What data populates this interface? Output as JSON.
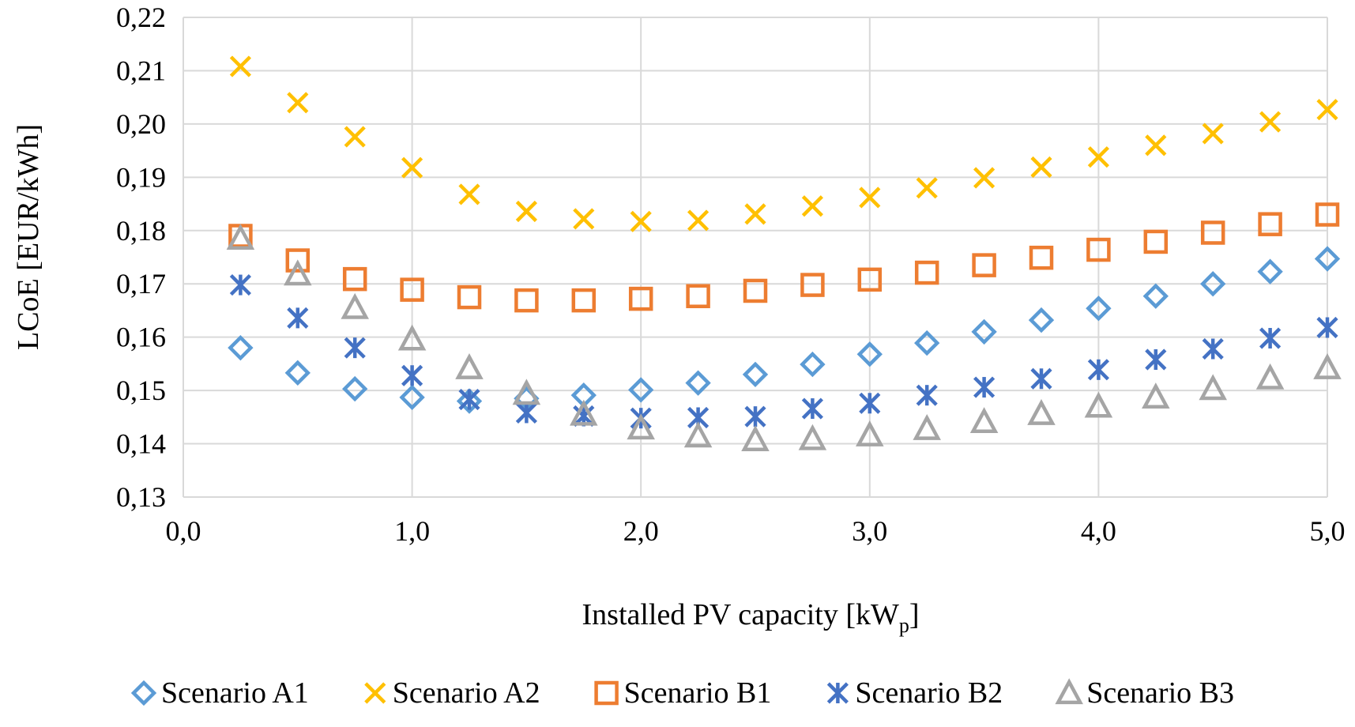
{
  "chart_data": {
    "type": "scatter",
    "title": "",
    "xlabel": "Installed PV capacity [kW",
    "xlabel_sub": "p",
    "xlabel_suffix": "]",
    "ylabel": "LCoE [EUR/kWh]",
    "xlim": [
      0,
      5
    ],
    "ylim": [
      0.13,
      0.22
    ],
    "x_ticks": [
      0,
      1,
      2,
      3,
      4,
      5
    ],
    "x_tick_labels": [
      "0,0",
      "1,0",
      "2,0",
      "3,0",
      "4,0",
      "5,0"
    ],
    "y_ticks": [
      0.13,
      0.14,
      0.15,
      0.16,
      0.17,
      0.18,
      0.19,
      0.2,
      0.21,
      0.22
    ],
    "y_tick_labels": [
      "0,13",
      "0,14",
      "0,15",
      "0,16",
      "0,17",
      "0,18",
      "0,19",
      "0,20",
      "0,21",
      "0,22"
    ],
    "grid": true,
    "legend_position": "bottom",
    "x": [
      0.25,
      0.5,
      0.75,
      1.0,
      1.25,
      1.5,
      1.75,
      2.0,
      2.25,
      2.5,
      2.75,
      3.0,
      3.25,
      3.5,
      3.75,
      4.0,
      4.25,
      4.5,
      4.75,
      5.0
    ],
    "series": [
      {
        "name": "Scenario A1",
        "marker": "diamond",
        "color": "#5B9BD5",
        "values": [
          0.158,
          0.1533,
          0.1503,
          0.1487,
          0.148,
          0.1485,
          0.1491,
          0.1501,
          0.1514,
          0.153,
          0.1549,
          0.1568,
          0.1589,
          0.161,
          0.1632,
          0.1654,
          0.1677,
          0.17,
          0.1723,
          0.1747
        ]
      },
      {
        "name": "Scenario A2",
        "marker": "x",
        "color": "#FFC000",
        "values": [
          0.2108,
          0.204,
          0.1976,
          0.1918,
          0.1868,
          0.1836,
          0.1822,
          0.1817,
          0.1819,
          0.1831,
          0.1846,
          0.1862,
          0.188,
          0.1899,
          0.1919,
          0.1938,
          0.196,
          0.1982,
          0.2004,
          0.2027
        ]
      },
      {
        "name": "Scenario B1",
        "marker": "square",
        "color": "#ED7D31",
        "values": [
          0.179,
          0.1744,
          0.1709,
          0.1689,
          0.1675,
          0.1669,
          0.1669,
          0.1672,
          0.1677,
          0.1687,
          0.1698,
          0.1708,
          0.1721,
          0.1735,
          0.1749,
          0.1764,
          0.1779,
          0.1796,
          0.1812,
          0.183
        ]
      },
      {
        "name": "Scenario B2",
        "marker": "asterisk",
        "color": "#4472C4",
        "values": [
          0.1698,
          0.1636,
          0.158,
          0.1528,
          0.1483,
          0.1458,
          0.1452,
          0.1448,
          0.1449,
          0.1451,
          0.1466,
          0.1476,
          0.1491,
          0.1506,
          0.1522,
          0.1539,
          0.1558,
          0.1578,
          0.1598,
          0.1618
        ]
      },
      {
        "name": "Scenario B3",
        "marker": "triangle",
        "color": "#A5A5A5",
        "values": [
          0.1785,
          0.1718,
          0.1655,
          0.1596,
          0.1542,
          0.1494,
          0.1455,
          0.1429,
          0.1414,
          0.1407,
          0.1409,
          0.1416,
          0.1428,
          0.1441,
          0.1456,
          0.147,
          0.1487,
          0.1503,
          0.1523,
          0.1542
        ]
      }
    ]
  }
}
